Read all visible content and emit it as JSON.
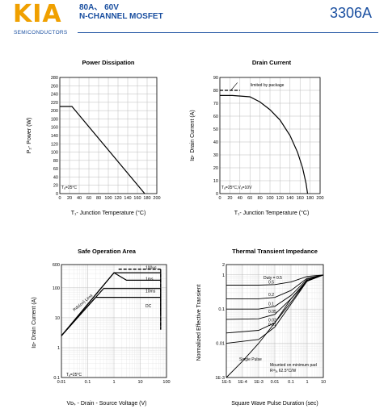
{
  "header": {
    "logo": "KIA",
    "logo_sub": "SEMICONDUCTORS",
    "spec_line1": "80A、 60V",
    "spec_line2": "N-CHANNEL MOSFET",
    "part_number": "3306A",
    "brand_color": "#f0a000",
    "accent_color": "#1a4fa0"
  },
  "chart_data": [
    {
      "type": "line",
      "title": "Power Dissipation",
      "xlabel": "T₁- Junction Temperature (°C)",
      "ylabel": "P₂- Power (W)",
      "xlim": [
        0,
        200
      ],
      "ylim": [
        0,
        280
      ],
      "xticks": [
        "0",
        "20",
        "40",
        "60",
        "80",
        "100",
        "120",
        "140",
        "160",
        "180",
        "200"
      ],
      "yticks": [
        "0",
        "20",
        "40",
        "60",
        "80",
        "100",
        "120",
        "140",
        "160",
        "180",
        "200",
        "220",
        "240",
        "260",
        "280"
      ],
      "grid": true,
      "annotations": [
        "Tₐ=25°C"
      ],
      "series": [
        {
          "x": [
            0,
            25,
            175
          ],
          "y": [
            210,
            210,
            0
          ]
        }
      ]
    },
    {
      "type": "line",
      "title": "Drain Current",
      "xlabel": "T₁- Junction Temperature (°C)",
      "ylabel": "Iᴅ- Drain Current (A)",
      "xlim": [
        0,
        200
      ],
      "ylim": [
        0,
        90
      ],
      "xticks": [
        "0",
        "20",
        "40",
        "60",
        "80",
        "100",
        "120",
        "140",
        "160",
        "180",
        "200"
      ],
      "yticks": [
        "0",
        "10",
        "20",
        "30",
        "40",
        "50",
        "60",
        "70",
        "80",
        "90"
      ],
      "grid": true,
      "annotations": [
        "limited by package",
        "Tₐ=25°C,Vₐ=10V"
      ],
      "limit": {
        "x": [
          0,
          40
        ],
        "y": [
          80,
          80
        ]
      },
      "series": [
        {
          "x": [
            0,
            25,
            60,
            80,
            100,
            120,
            140,
            155,
            165,
            172,
            175
          ],
          "y": [
            76,
            76,
            75,
            71,
            65,
            57,
            45,
            32,
            20,
            8,
            0
          ]
        }
      ]
    },
    {
      "type": "line",
      "title": "Safe Operation Area",
      "xlabel": "Vᴅₛ - Drain - Source Voltage (V)",
      "ylabel": "Iᴅ- Drain Current (A)",
      "xscale": "log",
      "yscale": "log",
      "xlim": [
        0.01,
        100
      ],
      "ylim": [
        0.1,
        600
      ],
      "xticks": [
        "0.01",
        "0.1",
        "1",
        "10",
        "100"
      ],
      "yticks": [
        "0.1",
        "1",
        "10",
        "100",
        "600"
      ],
      "grid": true,
      "annotations": [
        "Tₐ=25°C",
        "Rds(on) Limit"
      ],
      "series": [
        {
          "name": "100us",
          "x": [
            0.01,
            1,
            60,
            60
          ],
          "y": [
            2.5,
            320,
            320,
            150
          ]
        },
        {
          "name": "1ms",
          "x": [
            0.01,
            1,
            3,
            60,
            60
          ],
          "y": [
            2.5,
            320,
            180,
            180,
            50
          ]
        },
        {
          "name": "10ms",
          "x": [
            0.01,
            0.4,
            60,
            60
          ],
          "y": [
            2.5,
            95,
            95,
            14
          ]
        },
        {
          "name": "DC",
          "x": [
            0.01,
            0.2,
            60,
            60
          ],
          "y": [
            2.5,
            48,
            48,
            4
          ]
        }
      ],
      "limit_dashed": {
        "x": [
          1.5,
          60
        ],
        "y": [
          420,
          420
        ]
      }
    },
    {
      "type": "line",
      "title": "Thermal Transient Impedance",
      "xlabel": "Square Wave Pulse Duration (sec)",
      "ylabel": "Normalized Effective Transient",
      "xscale": "log",
      "yscale": "log",
      "xlim": [
        1e-05,
        10
      ],
      "ylim": [
        0.001,
        2
      ],
      "xticks": [
        "1E-5",
        "1E-4",
        "1E-3",
        "0.01",
        "0.1",
        "1",
        "10"
      ],
      "yticks": [
        "1E-3",
        "0.01",
        "0.1",
        "1",
        "2"
      ],
      "grid": true,
      "annotations": [
        "Duty = 0.5",
        "Single Pulse",
        "Mounted on minimum pad",
        "Rᵗʰⱼₐ 62.5°C/W"
      ],
      "series": [
        {
          "name": "0.5",
          "x": [
            1e-05,
            0.001,
            0.01,
            0.1,
            1,
            10
          ],
          "y": [
            0.5,
            0.5,
            0.52,
            0.62,
            0.9,
            1
          ]
        },
        {
          "name": "0.2",
          "x": [
            1e-05,
            0.001,
            0.01,
            0.1,
            1,
            10
          ],
          "y": [
            0.2,
            0.2,
            0.22,
            0.35,
            0.8,
            1
          ]
        },
        {
          "name": "0.1",
          "x": [
            1e-05,
            0.001,
            0.01,
            0.1,
            1,
            10
          ],
          "y": [
            0.1,
            0.1,
            0.12,
            0.25,
            0.75,
            1
          ]
        },
        {
          "name": "0.05",
          "x": [
            1e-05,
            0.001,
            0.01,
            0.1,
            1,
            10
          ],
          "y": [
            0.05,
            0.052,
            0.07,
            0.2,
            0.7,
            1
          ]
        },
        {
          "name": "0.02",
          "x": [
            1e-05,
            0.001,
            0.01,
            0.1,
            1,
            10
          ],
          "y": [
            0.02,
            0.024,
            0.04,
            0.16,
            0.68,
            1
          ]
        },
        {
          "name": "0.01",
          "x": [
            1e-05,
            0.001,
            0.01,
            0.1,
            1,
            10
          ],
          "y": [
            0.01,
            0.013,
            0.03,
            0.14,
            0.66,
            1
          ]
        },
        {
          "name": "Single Pulse",
          "x": [
            1e-05,
            0.0001,
            0.001,
            0.01,
            0.1,
            1,
            10
          ],
          "y": [
            0.001,
            0.003,
            0.01,
            0.04,
            0.2,
            0.65,
            1
          ]
        }
      ]
    }
  ]
}
